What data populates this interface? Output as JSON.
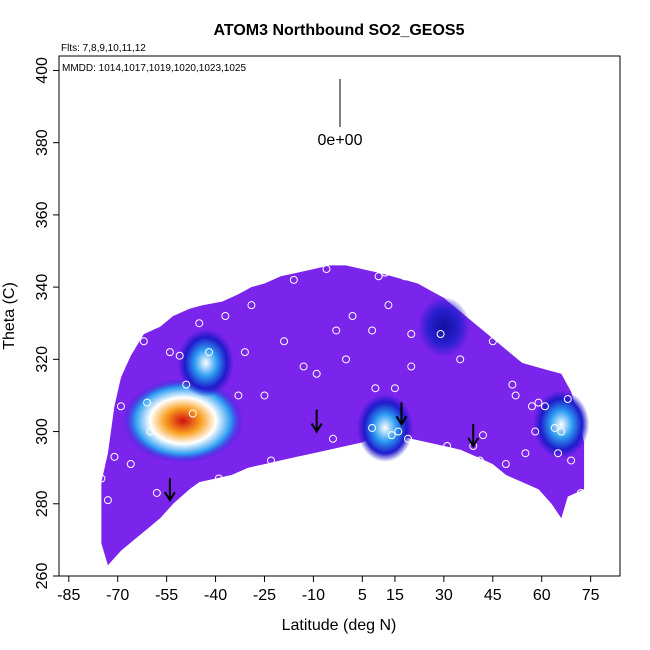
{
  "chart_data": {
    "type": "heatmap",
    "title": "ATOM3 Northbound SO2_GEOS5",
    "annotations": {
      "flights": "Flts: 7,8,9,10,11,12",
      "dates": "MMDD: 1014,1017,1019,1020,1023,1025",
      "scale_value": "0e+00"
    },
    "xlabel": "Latitude (deg N)",
    "ylabel": "Theta (C)",
    "xlim": [
      -88,
      84
    ],
    "ylim": [
      260,
      404
    ],
    "xticks": [
      -85,
      -70,
      -55,
      -40,
      -25,
      -10,
      5,
      15,
      30,
      45,
      60,
      75
    ],
    "yticks": [
      260,
      280,
      300,
      320,
      340,
      360,
      380,
      400
    ],
    "colors": {
      "background_field": "#7a24ec",
      "dark": "#1f1acb",
      "mid": "#2b9cf2",
      "light": "#ffffff",
      "hot": "#e01010",
      "warm": "#f8a020"
    },
    "hotspots": [
      {
        "lat": -50,
        "theta": 303,
        "intensity": "max"
      },
      {
        "lat": -43,
        "theta": 319,
        "intensity": "moderate"
      },
      {
        "lat": 12,
        "theta": 301,
        "intensity": "moderate"
      },
      {
        "lat": 66,
        "theta": 302,
        "intensity": "moderate"
      },
      {
        "lat": 30,
        "theta": 329,
        "intensity": "low"
      }
    ],
    "arrows": [
      {
        "lat": -54,
        "theta": 281
      },
      {
        "lat": -9,
        "theta": 300
      },
      {
        "lat": 17,
        "theta": 302
      },
      {
        "lat": 39,
        "theta": 296
      }
    ],
    "points": [
      [
        -75,
        287
      ],
      [
        -73,
        281
      ],
      [
        -71,
        293
      ],
      [
        -69,
        307
      ],
      [
        -66,
        291
      ],
      [
        -62,
        325
      ],
      [
        -61,
        308
      ],
      [
        -60,
        300
      ],
      [
        -58,
        283
      ],
      [
        -54,
        322
      ],
      [
        -51,
        321
      ],
      [
        -49,
        313
      ],
      [
        -47,
        305
      ],
      [
        -45,
        330
      ],
      [
        -42,
        322
      ],
      [
        -39,
        287
      ],
      [
        -37,
        332
      ],
      [
        -34,
        287
      ],
      [
        -33,
        310
      ],
      [
        -31,
        322
      ],
      [
        -29,
        335
      ],
      [
        -25,
        310
      ],
      [
        -23,
        292
      ],
      [
        -19,
        325
      ],
      [
        -16,
        342
      ],
      [
        -13,
        318
      ],
      [
        -9,
        316
      ],
      [
        -6,
        345
      ],
      [
        -4,
        298
      ],
      [
        -3,
        328
      ],
      [
        0,
        320
      ],
      [
        2,
        332
      ],
      [
        8,
        301
      ],
      [
        8,
        328
      ],
      [
        9,
        312
      ],
      [
        10,
        343
      ],
      [
        12,
        344
      ],
      [
        13,
        335
      ],
      [
        14,
        299
      ],
      [
        15,
        312
      ],
      [
        16,
        300
      ],
      [
        18,
        343
      ],
      [
        19,
        298
      ],
      [
        20,
        327
      ],
      [
        20,
        318
      ],
      [
        26,
        341
      ],
      [
        29,
        327
      ],
      [
        31,
        296
      ],
      [
        35,
        320
      ],
      [
        36,
        293
      ],
      [
        39,
        296
      ],
      [
        41,
        292
      ],
      [
        42,
        299
      ],
      [
        45,
        325
      ],
      [
        49,
        291
      ],
      [
        51,
        313
      ],
      [
        52,
        310
      ],
      [
        55,
        294
      ],
      [
        57,
        307
      ],
      [
        58,
        300
      ],
      [
        59,
        308
      ],
      [
        60,
        320
      ],
      [
        61,
        307
      ],
      [
        64,
        301
      ],
      [
        65,
        294
      ],
      [
        66,
        300
      ],
      [
        68,
        309
      ],
      [
        69,
        292
      ],
      [
        72,
        283
      ]
    ]
  }
}
